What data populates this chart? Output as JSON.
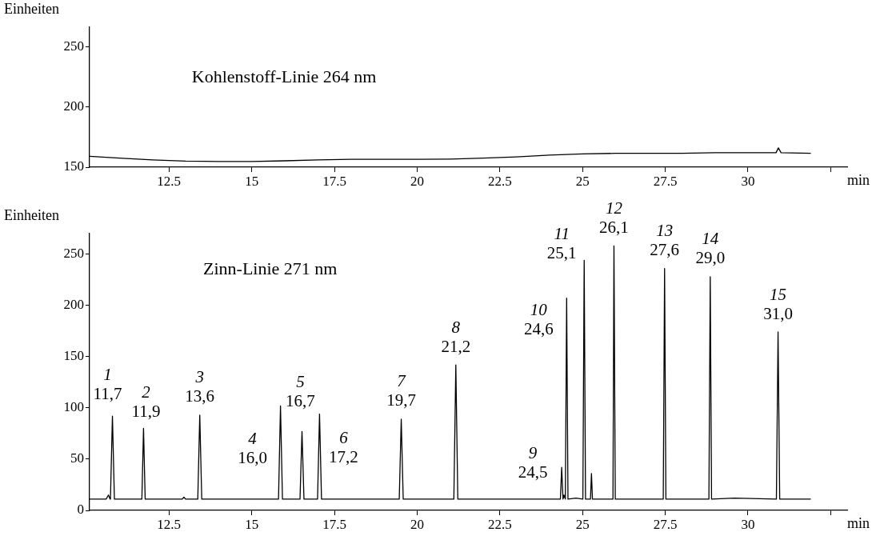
{
  "chart_data": [
    {
      "type": "line",
      "title": "Kohlenstoff-Linie 264 nm",
      "ylabel": "Einheiten",
      "xlabel": "min",
      "color": "#000000",
      "marker": "none",
      "x": [
        10.1,
        11,
        12,
        13,
        14,
        15,
        16,
        17,
        18,
        19,
        20,
        21,
        22,
        23,
        24,
        25,
        26,
        27,
        28,
        29,
        30,
        30.85,
        30.92,
        31.0,
        31.9
      ],
      "values": [
        159,
        157.5,
        156,
        155,
        154.7,
        154.7,
        155.3,
        156,
        156.5,
        156.5,
        156.5,
        156.7,
        157.5,
        158.5,
        160,
        161,
        161.5,
        161.5,
        161.5,
        162,
        162,
        162,
        166,
        162,
        161.5
      ],
      "xlim": [
        10.1,
        33.0
      ],
      "xticks": [
        12.5,
        15,
        17.5,
        20,
        22.5,
        25,
        27.5,
        30,
        {
          "value": 32.5,
          "label": null
        }
      ],
      "ylim": [
        150,
        266
      ],
      "yticks": [
        150,
        200,
        250
      ]
    },
    {
      "type": "line",
      "title": "Zinn-Linie 271 nm",
      "ylabel": "Einheiten",
      "xlabel": "min",
      "color": "#000000",
      "marker": "none",
      "x": [
        10.1,
        10.6,
        10.67,
        10.72,
        10.73,
        10.79,
        10.85,
        11.68,
        11.73,
        11.78,
        12.9,
        12.95,
        13.0,
        13.37,
        13.43,
        13.49,
        15.81,
        15.87,
        15.93,
        16.46,
        16.52,
        16.58,
        16.99,
        17.05,
        17.11,
        19.46,
        19.52,
        19.58,
        21.11,
        21.17,
        21.23,
        24.33,
        24.37,
        24.41,
        24.44,
        24.48,
        24.52,
        24.56,
        24.8,
        25.01,
        25.05,
        25.09,
        25.24,
        25.27,
        25.3,
        25.92,
        25.95,
        25.99,
        27.44,
        27.48,
        27.52,
        28.82,
        28.86,
        28.9,
        29.59,
        30.86,
        30.91,
        30.96,
        31.9
      ],
      "values": [
        11,
        11,
        15,
        11,
        11,
        92,
        11,
        11,
        80,
        11,
        11,
        13,
        11,
        11,
        93,
        11,
        11,
        102,
        11,
        11,
        77,
        11,
        11,
        94,
        11,
        11,
        89,
        11,
        11,
        142,
        11,
        11,
        42,
        11,
        15,
        11,
        207,
        11,
        12,
        11,
        244,
        11,
        11,
        36,
        11,
        11,
        258,
        11,
        11,
        236,
        11,
        11,
        228,
        11,
        12,
        11,
        174,
        11,
        11
      ],
      "xlim": [
        10.1,
        33.0
      ],
      "xticks": [
        12.5,
        15,
        17.5,
        20,
        22.5,
        25,
        27.5,
        30,
        {
          "value": 32.5,
          "label": null
        }
      ],
      "ylim": [
        0,
        270
      ],
      "yticks": [
        0,
        50,
        100,
        150,
        200,
        250
      ],
      "annotations": [
        {
          "text": "1\n11,7",
          "x": 10.79,
          "y": 92
        },
        {
          "text": "2\n11,9",
          "x": 11.73,
          "y": 80
        },
        {
          "text": "3\n13,6",
          "x": 13.43,
          "y": 93
        },
        {
          "text": "4\n16,0",
          "x": 15.87,
          "y": 102
        },
        {
          "text": "5\n16,7",
          "x": 16.52,
          "y": 77
        },
        {
          "text": "6\n17,2",
          "x": 17.05,
          "y": 94
        },
        {
          "text": "7\n19,7",
          "x": 19.52,
          "y": 89
        },
        {
          "text": "8\n21,2",
          "x": 21.17,
          "y": 142
        },
        {
          "text": "9\n24,5",
          "x": 24.37,
          "y": 42
        },
        {
          "text": "10\n24,6",
          "x": 24.52,
          "y": 207
        },
        {
          "text": "11\n25,1",
          "x": 25.05,
          "y": 244
        },
        {
          "text": "12\n26,1",
          "x": 25.95,
          "y": 258
        },
        {
          "text": "13\n27,6",
          "x": 27.48,
          "y": 236
        },
        {
          "text": "14\n29,0",
          "x": 28.86,
          "y": 228
        },
        {
          "text": "15\n31,0",
          "x": 30.91,
          "y": 174
        }
      ]
    }
  ]
}
